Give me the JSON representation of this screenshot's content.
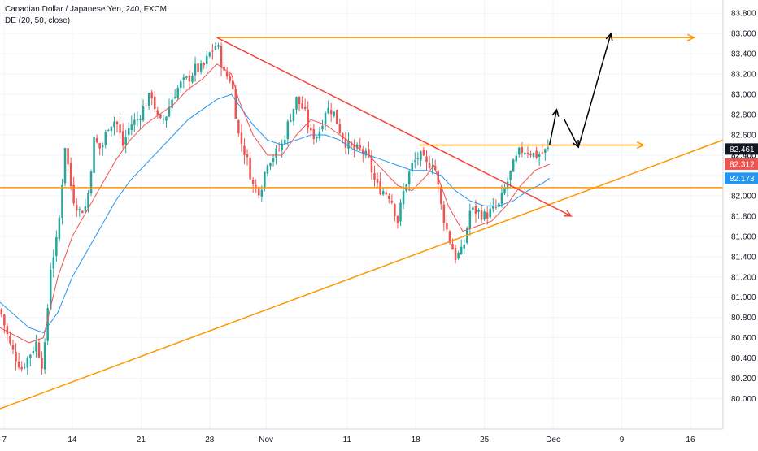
{
  "chart_data": {
    "type": "candlestick",
    "title": "Canadian Dollar / Japanese Yen, 240, FXCM",
    "indicator": "DE (20, 50, close)",
    "y_range": [
      79.7,
      83.93
    ],
    "x_range": [
      0,
      100
    ],
    "y_ticks": [
      "80.000",
      "80.200",
      "80.400",
      "80.600",
      "80.800",
      "81.000",
      "81.200",
      "81.400",
      "81.600",
      "81.800",
      "82.000",
      "82.200",
      "82.400",
      "82.600",
      "82.800",
      "83.000",
      "83.200",
      "83.400",
      "83.600",
      "83.800"
    ],
    "y_tick_values": [
      80.0,
      80.2,
      80.4,
      80.6,
      80.8,
      81.0,
      81.2,
      81.4,
      81.6,
      81.8,
      82.0,
      82.2,
      82.4,
      82.6,
      82.8,
      83.0,
      83.2,
      83.4,
      83.6,
      83.8
    ],
    "x_ticks": [
      "7",
      "14",
      "21",
      "28",
      "Nov",
      "11",
      "18",
      "25",
      "Dec",
      "9",
      "16"
    ],
    "x_tick_positions": [
      0.6,
      10,
      19.5,
      29,
      36.8,
      48,
      57.5,
      67,
      76.5,
      86,
      95.5
    ],
    "price_labels": [
      {
        "text": "82.461",
        "value": 82.461,
        "color": "#131722"
      },
      {
        "text": "82.312",
        "value": 82.312,
        "color": "#ef5350"
      },
      {
        "text": "82.173",
        "value": 82.173,
        "color": "#2196f3"
      }
    ],
    "hidden_label": "82.400",
    "close_anchors": [
      [
        0,
        80.88
      ],
      [
        1.5,
        80.5
      ],
      [
        3,
        80.3
      ],
      [
        5,
        80.55
      ],
      [
        6,
        80.3
      ],
      [
        7,
        81.3
      ],
      [
        8,
        81.6
      ],
      [
        9,
        82.5
      ],
      [
        10,
        82.0
      ],
      [
        11,
        81.85
      ],
      [
        12,
        81.9
      ],
      [
        13,
        82.55
      ],
      [
        14,
        82.45
      ],
      [
        15,
        82.7
      ],
      [
        16,
        82.75
      ],
      [
        17,
        82.5
      ],
      [
        18,
        82.7
      ],
      [
        19,
        82.75
      ],
      [
        20,
        82.9
      ],
      [
        21,
        83.0
      ],
      [
        22,
        82.7
      ],
      [
        23,
        82.8
      ],
      [
        24,
        83.0
      ],
      [
        25,
        83.1
      ],
      [
        26,
        83.15
      ],
      [
        27,
        83.25
      ],
      [
        28,
        83.25
      ],
      [
        29,
        83.4
      ],
      [
        30,
        83.5
      ],
      [
        31,
        83.2
      ],
      [
        32,
        83.15
      ],
      [
        33,
        82.6
      ],
      [
        34,
        82.4
      ],
      [
        35,
        82.1
      ],
      [
        36,
        82.05
      ],
      [
        37,
        82.35
      ],
      [
        38,
        82.4
      ],
      [
        39,
        82.5
      ],
      [
        40,
        82.75
      ],
      [
        41,
        82.95
      ],
      [
        42,
        82.85
      ],
      [
        43,
        82.6
      ],
      [
        44,
        82.6
      ],
      [
        45,
        82.85
      ],
      [
        46,
        82.85
      ],
      [
        47,
        82.65
      ],
      [
        48,
        82.5
      ],
      [
        49,
        82.45
      ],
      [
        50,
        82.45
      ],
      [
        51,
        82.35
      ],
      [
        52,
        82.1
      ],
      [
        53,
        82.05
      ],
      [
        54,
        82.0
      ],
      [
        55,
        81.75
      ],
      [
        56,
        82.1
      ],
      [
        57,
        82.3
      ],
      [
        58,
        82.4
      ],
      [
        59,
        82.3
      ],
      [
        60,
        82.35
      ],
      [
        61,
        81.9
      ],
      [
        62,
        81.6
      ],
      [
        63,
        81.4
      ],
      [
        64,
        81.45
      ],
      [
        65,
        81.85
      ],
      [
        66,
        81.85
      ],
      [
        67,
        81.8
      ],
      [
        68,
        81.85
      ],
      [
        69,
        81.9
      ],
      [
        70,
        82.1
      ],
      [
        71,
        82.3
      ],
      [
        72,
        82.45
      ],
      [
        73,
        82.45
      ],
      [
        74,
        82.4
      ],
      [
        75,
        82.42
      ],
      [
        76,
        82.461
      ]
    ],
    "ma_fast": [
      [
        0,
        80.7
      ],
      [
        4,
        80.55
      ],
      [
        6,
        80.6
      ],
      [
        8,
        81.2
      ],
      [
        10,
        81.6
      ],
      [
        12,
        81.85
      ],
      [
        14,
        82.1
      ],
      [
        16,
        82.35
      ],
      [
        18,
        82.55
      ],
      [
        20,
        82.7
      ],
      [
        22,
        82.8
      ],
      [
        24,
        82.9
      ],
      [
        26,
        83.05
      ],
      [
        28,
        83.15
      ],
      [
        30,
        83.3
      ],
      [
        32,
        83.2
      ],
      [
        33,
        82.95
      ],
      [
        35,
        82.6
      ],
      [
        37,
        82.4
      ],
      [
        39,
        82.4
      ],
      [
        41,
        82.6
      ],
      [
        43,
        82.75
      ],
      [
        45,
        82.7
      ],
      [
        47,
        82.6
      ],
      [
        49,
        82.5
      ],
      [
        51,
        82.4
      ],
      [
        53,
        82.25
      ],
      [
        55,
        82.1
      ],
      [
        57,
        82.05
      ],
      [
        59,
        82.2
      ],
      [
        60,
        82.3
      ],
      [
        62,
        81.9
      ],
      [
        64,
        81.65
      ],
      [
        66,
        81.7
      ],
      [
        68,
        81.75
      ],
      [
        70,
        81.9
      ],
      [
        72,
        82.1
      ],
      [
        74,
        82.25
      ],
      [
        76,
        82.312
      ]
    ],
    "ma_slow": [
      [
        0,
        80.95
      ],
      [
        4,
        80.7
      ],
      [
        6,
        80.65
      ],
      [
        8,
        80.85
      ],
      [
        10,
        81.2
      ],
      [
        12,
        81.45
      ],
      [
        14,
        81.7
      ],
      [
        16,
        81.95
      ],
      [
        18,
        82.15
      ],
      [
        20,
        82.3
      ],
      [
        22,
        82.45
      ],
      [
        24,
        82.6
      ],
      [
        26,
        82.75
      ],
      [
        28,
        82.85
      ],
      [
        30,
        82.95
      ],
      [
        32,
        83.0
      ],
      [
        33,
        82.9
      ],
      [
        35,
        82.7
      ],
      [
        37,
        82.55
      ],
      [
        39,
        82.5
      ],
      [
        41,
        82.55
      ],
      [
        43,
        82.6
      ],
      [
        45,
        82.6
      ],
      [
        47,
        82.55
      ],
      [
        49,
        82.45
      ],
      [
        51,
        82.4
      ],
      [
        53,
        82.35
      ],
      [
        55,
        82.3
      ],
      [
        57,
        82.25
      ],
      [
        59,
        82.25
      ],
      [
        61,
        82.2
      ],
      [
        63,
        82.05
      ],
      [
        65,
        81.95
      ],
      [
        67,
        81.9
      ],
      [
        69,
        81.9
      ],
      [
        71,
        81.95
      ],
      [
        73,
        82.05
      ],
      [
        75,
        82.12
      ],
      [
        76,
        82.173
      ]
    ],
    "annotations": {
      "resistance_high": {
        "x1": 30,
        "x2": 96,
        "y": 83.56
      },
      "resistance_mid": {
        "x1": 58,
        "x2": 89,
        "y": 82.5
      },
      "support_horizontal": {
        "y": 82.08
      },
      "rising_trendline": {
        "x1": 0,
        "y1": 79.9,
        "x2": 100,
        "y2": 82.55
      },
      "falling_trendline": {
        "x1": 30,
        "y1": 83.56,
        "x2": 79,
        "y2": 81.8
      },
      "projection_path": [
        [
          76,
          82.5
        ],
        [
          77,
          82.85
        ],
        [
          78,
          82.76
        ],
        [
          80,
          82.48
        ],
        [
          84.5,
          83.6
        ]
      ]
    },
    "colors": {
      "up": "#26a69a",
      "down": "#ef5350",
      "ma_fast": "#ef5350",
      "ma_slow": "#2196f3",
      "orange": "#ff9800",
      "red": "#f44336",
      "arrow": "#000000"
    }
  }
}
